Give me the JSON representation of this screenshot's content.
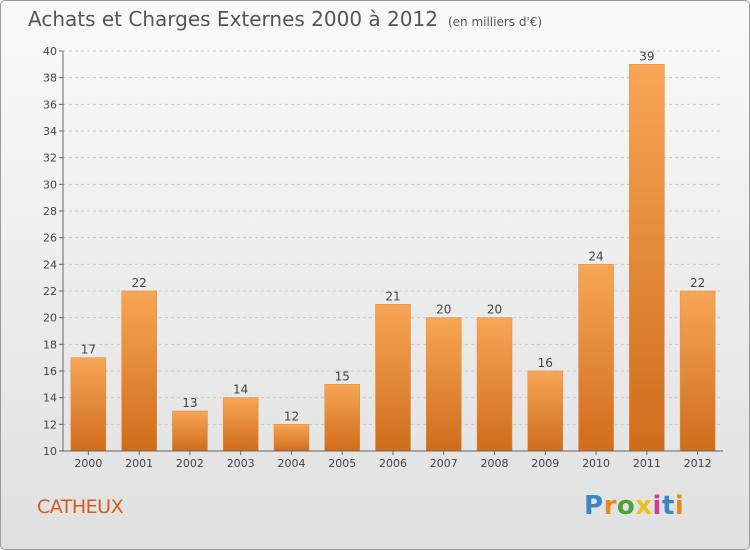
{
  "header": {
    "title": "Achats et Charges Externes 2000 à 2012",
    "unit": "(en milliers d'€)"
  },
  "footer": {
    "place": "CATHEUX",
    "logo_letters": [
      "P",
      "r",
      "o",
      "x",
      "i",
      "t",
      "i"
    ],
    "logo_colors": [
      "#3a86c8",
      "#e88a1a",
      "#4aa338",
      "#e8c21a",
      "#d83a8f",
      "#3a86c8",
      "#e88a1a"
    ]
  },
  "colors": {
    "bar_light": "#f7a656",
    "bar_dark": "#cf6d1c",
    "grid": "#c8c8c8",
    "axis": "#666666",
    "label": "#444444"
  },
  "chart_data": {
    "type": "bar",
    "categories": [
      "2000",
      "2001",
      "2002",
      "2003",
      "2004",
      "2005",
      "2006",
      "2007",
      "2008",
      "2009",
      "2010",
      "2011",
      "2012"
    ],
    "values": [
      17,
      22,
      13,
      14,
      12,
      15,
      21,
      20,
      20,
      16,
      24,
      39,
      22
    ],
    "ylim": [
      10,
      40
    ],
    "yticks": [
      10,
      12,
      14,
      16,
      18,
      20,
      22,
      24,
      26,
      28,
      30,
      32,
      34,
      36,
      38,
      40
    ],
    "grid": true,
    "title": "Achats et Charges Externes 2000 à 2012",
    "xlabel": "",
    "ylabel": ""
  }
}
